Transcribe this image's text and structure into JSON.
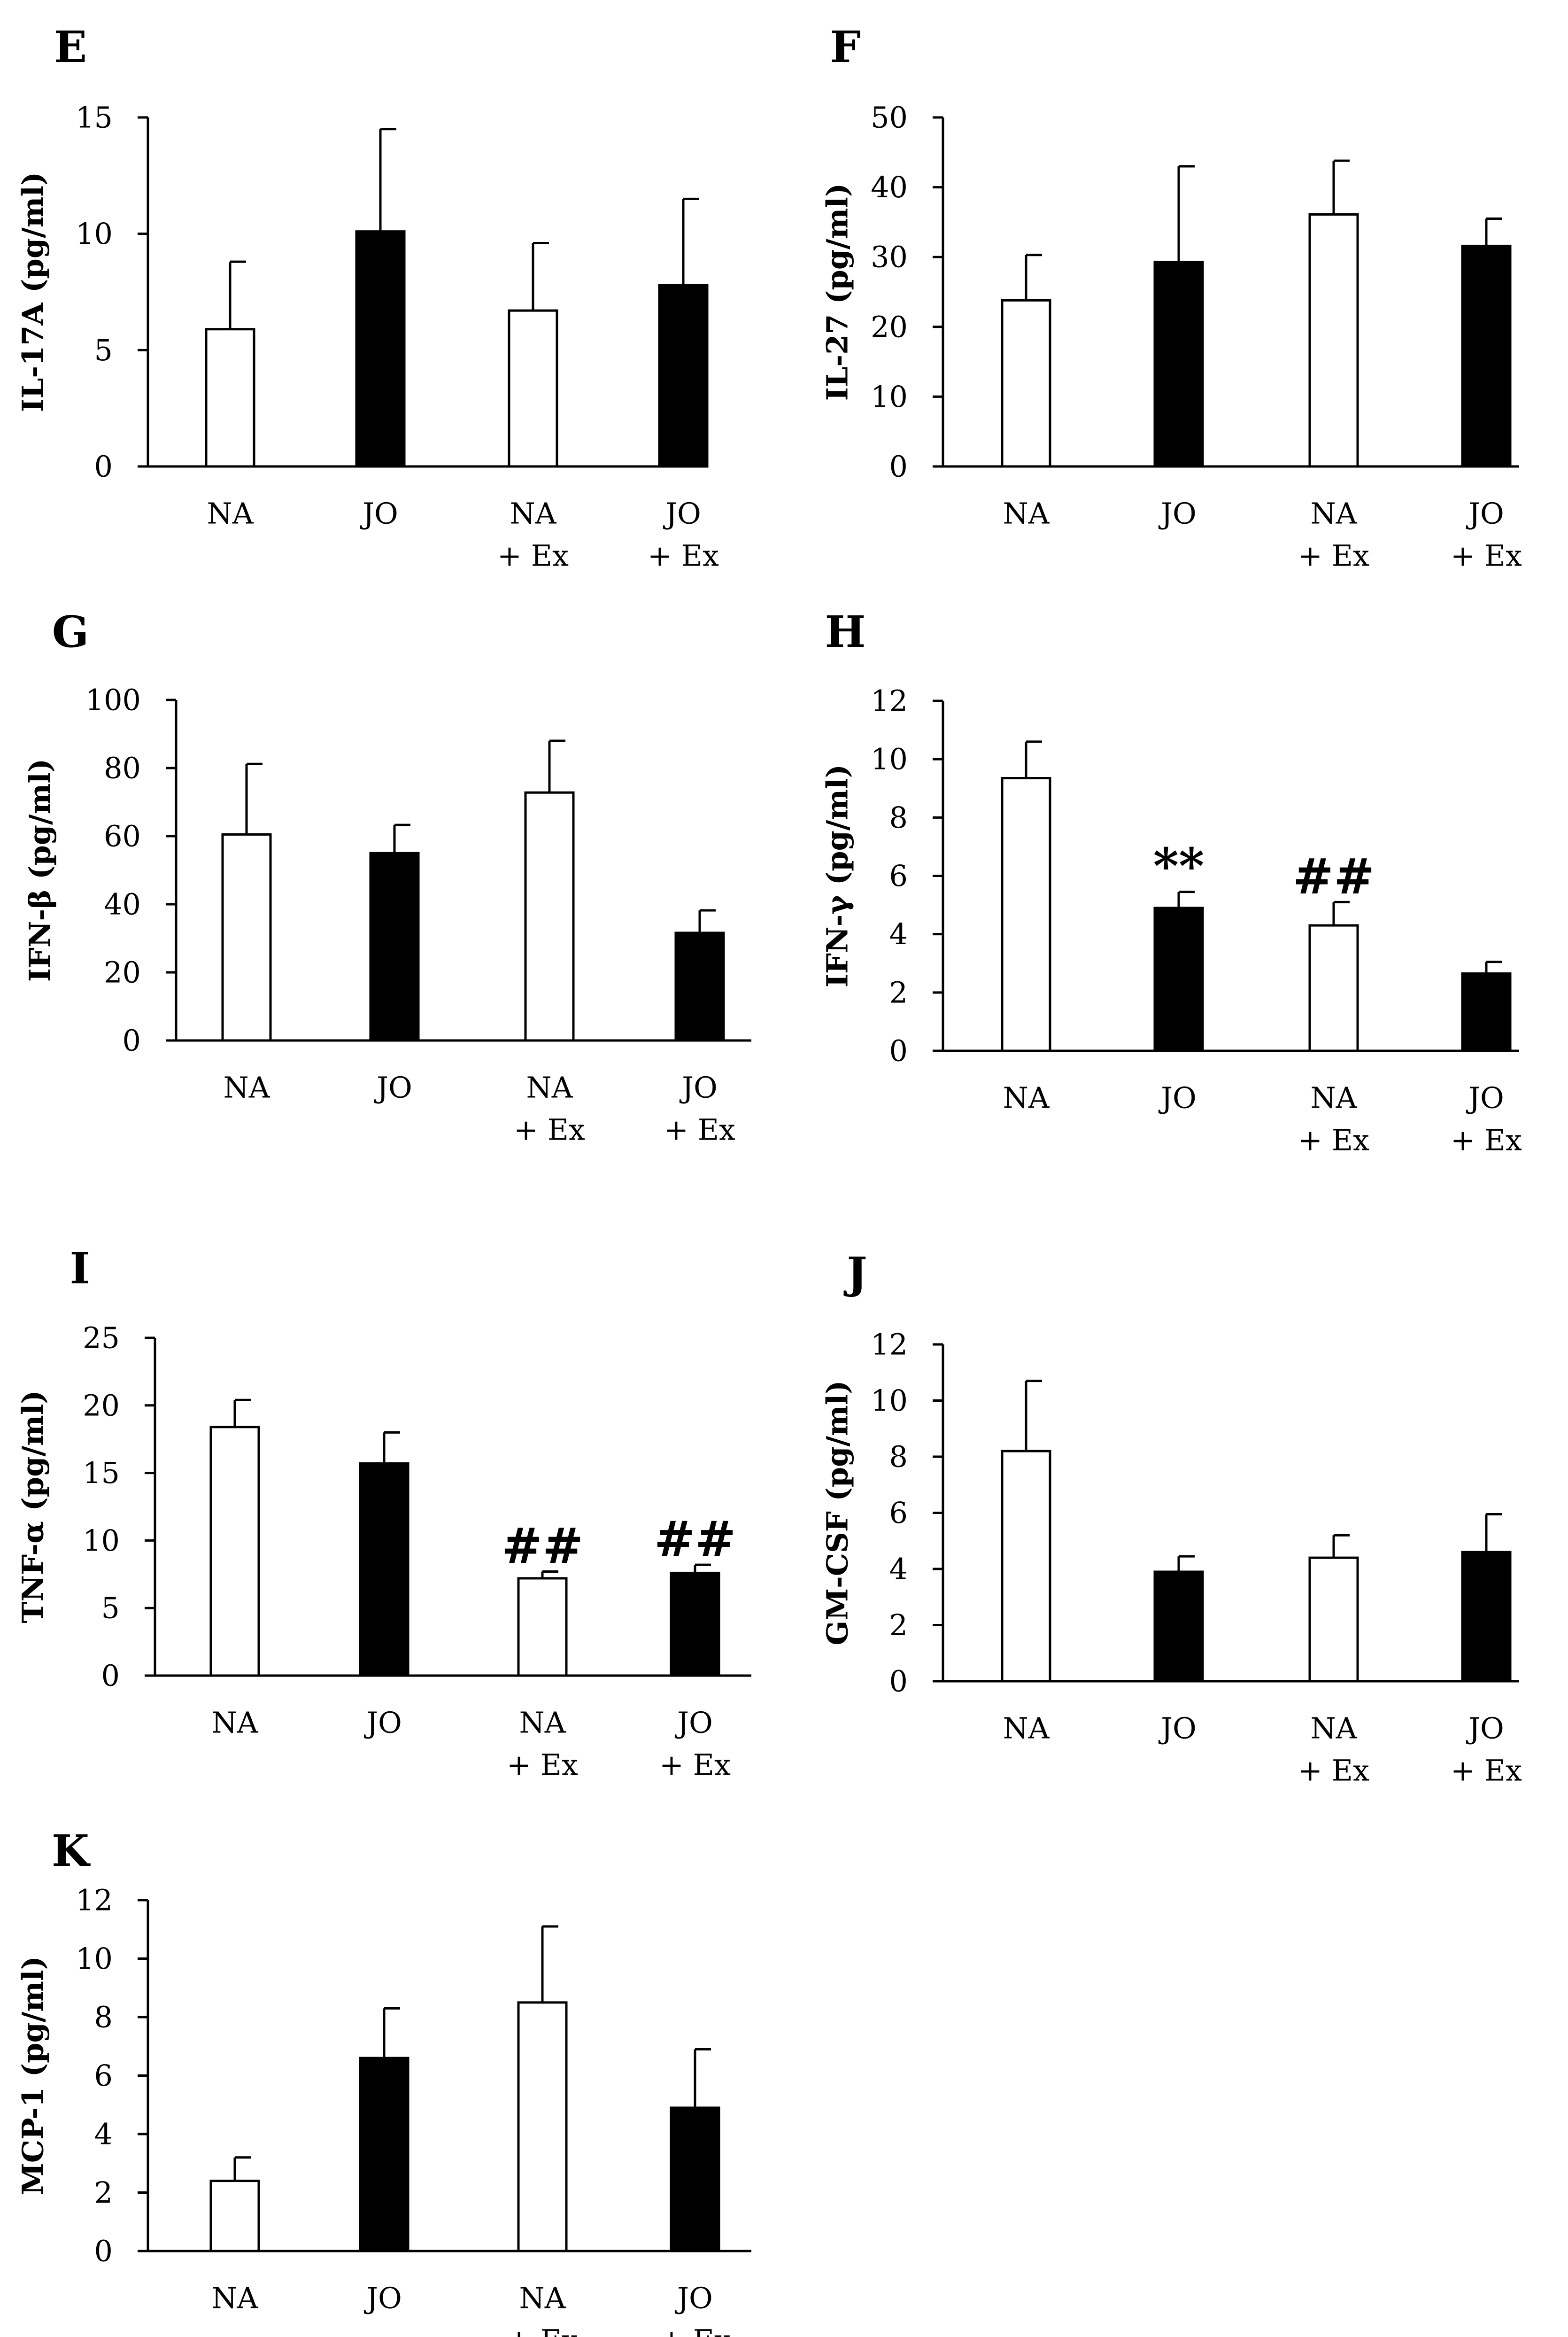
{
  "colors": {
    "open_bar": "#ffffff",
    "filled_bar": "#000000",
    "axis": "#000000",
    "background": "#ffffff"
  },
  "category_lines": [
    [
      "NA"
    ],
    [
      "JO"
    ],
    [
      "NA",
      "+ Ex"
    ],
    [
      "JO",
      "+ Ex"
    ]
  ],
  "chart_data": [
    {
      "panel": "E",
      "type": "bar",
      "ylabel": "IL-17A (pg/ml)",
      "categories": [
        "NA",
        "JO",
        "NA + Ex",
        "JO + Ex"
      ],
      "values": [
        5.9,
        10.1,
        6.7,
        7.8
      ],
      "errors": [
        2.9,
        4.4,
        2.9,
        3.7
      ],
      "fills": [
        "open",
        "filled",
        "open",
        "filled"
      ],
      "ylim": [
        0,
        15
      ],
      "yticks": [
        0,
        5,
        10,
        15
      ],
      "annotations": [
        "",
        "",
        "",
        ""
      ]
    },
    {
      "panel": "F",
      "type": "bar",
      "ylabel": "IL-27 (pg/ml)",
      "categories": [
        "NA",
        "JO",
        "NA + Ex",
        "JO + Ex"
      ],
      "values": [
        23.8,
        29.3,
        36.1,
        31.6
      ],
      "errors": [
        6.5,
        13.7,
        7.7,
        3.9
      ],
      "fills": [
        "open",
        "filled",
        "open",
        "filled"
      ],
      "ylim": [
        0,
        50
      ],
      "yticks": [
        0,
        10,
        20,
        30,
        40,
        50
      ],
      "annotations": [
        "",
        "",
        "",
        ""
      ]
    },
    {
      "panel": "G",
      "type": "bar",
      "ylabel": "IFN-β (pg/ml)",
      "categories": [
        "NA",
        "JO",
        "NA + Ex",
        "JO + Ex"
      ],
      "values": [
        60.5,
        55.0,
        72.8,
        31.6
      ],
      "errors": [
        20.7,
        8.3,
        15.2,
        6.6
      ],
      "fills": [
        "open",
        "filled",
        "open",
        "filled"
      ],
      "ylim": [
        0,
        100
      ],
      "yticks": [
        0,
        20,
        40,
        60,
        80,
        100
      ],
      "annotations": [
        "",
        "",
        "",
        ""
      ]
    },
    {
      "panel": "H",
      "type": "bar",
      "ylabel": "IFN-γ (pg/ml)",
      "categories": [
        "NA",
        "JO",
        "NA + Ex",
        "JO + Ex"
      ],
      "values": [
        9.35,
        4.9,
        4.3,
        2.65
      ],
      "errors": [
        1.25,
        0.55,
        0.8,
        0.4
      ],
      "fills": [
        "open",
        "filled",
        "open",
        "filled"
      ],
      "ylim": [
        0,
        12
      ],
      "yticks": [
        0,
        2,
        4,
        6,
        8,
        10,
        12
      ],
      "annotations": [
        "",
        "**",
        "##",
        ""
      ]
    },
    {
      "panel": "I",
      "type": "bar",
      "ylabel": "TNF-α (pg/ml)",
      "categories": [
        "NA",
        "JO",
        "NA + Ex",
        "JO + Ex"
      ],
      "values": [
        18.4,
        15.7,
        7.2,
        7.6
      ],
      "errors": [
        2.0,
        2.3,
        0.5,
        0.6
      ],
      "fills": [
        "open",
        "filled",
        "open",
        "filled"
      ],
      "ylim": [
        0,
        25
      ],
      "yticks": [
        0,
        5,
        10,
        15,
        20,
        25
      ],
      "annotations": [
        "",
        "",
        "##",
        "##"
      ]
    },
    {
      "panel": "J",
      "type": "bar",
      "ylabel": "GM-CSF (pg/ml)",
      "categories": [
        "NA",
        "JO",
        "NA + Ex",
        "JO + Ex"
      ],
      "values": [
        8.2,
        3.9,
        4.4,
        4.6
      ],
      "errors": [
        2.5,
        0.55,
        0.8,
        1.35
      ],
      "fills": [
        "open",
        "filled",
        "open",
        "filled"
      ],
      "ylim": [
        0,
        12
      ],
      "yticks": [
        0,
        2,
        4,
        6,
        8,
        10,
        12
      ],
      "annotations": [
        "",
        "",
        "",
        ""
      ]
    },
    {
      "panel": "K",
      "type": "bar",
      "ylabel": "MCP-1 (pg/ml)",
      "categories": [
        "NA",
        "JO",
        "NA + Ex",
        "JO + Ex"
      ],
      "values": [
        2.4,
        6.6,
        8.5,
        4.9
      ],
      "errors": [
        0.8,
        1.7,
        2.6,
        2.0
      ],
      "fills": [
        "open",
        "filled",
        "open",
        "filled"
      ],
      "ylim": [
        0,
        12
      ],
      "yticks": [
        0,
        2,
        4,
        6,
        8,
        10,
        12
      ],
      "annotations": [
        "",
        "",
        "",
        ""
      ]
    }
  ]
}
